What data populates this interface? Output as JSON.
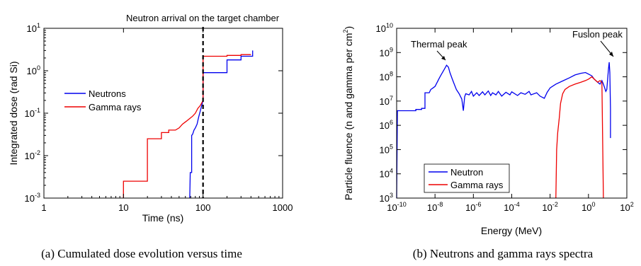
{
  "chart_data": [
    {
      "type": "line",
      "xlabel": "Time (ns)",
      "ylabel": "Integrated dose (rad Si)",
      "x_scale": "log",
      "y_scale": "log",
      "xlim": [
        1,
        1000
      ],
      "ylim": [
        0.001,
        10
      ],
      "x_ticks": [
        {
          "v": 1,
          "label": "1"
        },
        {
          "v": 10,
          "label": "10"
        },
        {
          "v": 100,
          "label": "100"
        },
        {
          "v": 1000,
          "label": "1000"
        }
      ],
      "y_ticks": [
        {
          "v": 0.001,
          "base": "10",
          "exp": "-3"
        },
        {
          "v": 0.01,
          "base": "10",
          "exp": "-2"
        },
        {
          "v": 0.1,
          "base": "10",
          "exp": "-1"
        },
        {
          "v": 1,
          "base": "10",
          "exp": "0"
        },
        {
          "v": 10,
          "base": "10",
          "exp": "1"
        }
      ],
      "legend": {
        "placement": "middle-left"
      },
      "vline": {
        "x": 100,
        "style": "dashed",
        "label": "Neutron arrival on the target chamber"
      },
      "series": [
        {
          "name": "Neutrons",
          "color": "#0000ee",
          "points": [
            [
              68,
              0.001
            ],
            [
              69,
              0.004
            ],
            [
              72,
              0.004
            ],
            [
              72,
              0.03
            ],
            [
              74,
              0.032
            ],
            [
              77,
              0.04
            ],
            [
              80,
              0.045
            ],
            [
              84,
              0.055
            ],
            [
              88,
              0.08
            ],
            [
              92,
              0.11
            ],
            [
              96,
              0.15
            ],
            [
              100,
              0.2
            ],
            [
              100,
              0.5
            ],
            [
              100,
              0.9
            ],
            [
              200,
              0.9
            ],
            [
              200,
              1.8
            ],
            [
              300,
              1.8
            ],
            [
              300,
              2.2
            ],
            [
              420,
              2.2
            ],
            [
              420,
              3.0
            ]
          ]
        },
        {
          "name": "Gamma rays",
          "color": "#ee0000",
          "points": [
            [
              10,
              0.001
            ],
            [
              10,
              0.0025
            ],
            [
              20,
              0.0025
            ],
            [
              20,
              0.025
            ],
            [
              30,
              0.025
            ],
            [
              30,
              0.035
            ],
            [
              37,
              0.035
            ],
            [
              37,
              0.04
            ],
            [
              45,
              0.04
            ],
            [
              50,
              0.045
            ],
            [
              55,
              0.055
            ],
            [
              62,
              0.065
            ],
            [
              68,
              0.075
            ],
            [
              74,
              0.085
            ],
            [
              80,
              0.1
            ],
            [
              86,
              0.13
            ],
            [
              92,
              0.15
            ],
            [
              97,
              0.18
            ],
            [
              100,
              0.2
            ],
            [
              100,
              2.2
            ],
            [
              200,
              2.2
            ],
            [
              200,
              2.3
            ],
            [
              300,
              2.3
            ],
            [
              300,
              2.4
            ],
            [
              400,
              2.4
            ]
          ]
        }
      ],
      "caption": "(a) Cumulated dose evolution versus time"
    },
    {
      "type": "line",
      "xlabel": "Energy (MeV)",
      "ylabel": "Particle fluence (n and gamma per cm²)",
      "ylabel_parts": {
        "main": "Particle fluence (n and gamma per cm",
        "sup": "2",
        "end": ")"
      },
      "x_scale": "log",
      "y_scale": "log",
      "xlim": [
        1e-10,
        100
      ],
      "ylim": [
        1000,
        10000000000.0
      ],
      "x_ticks": [
        {
          "v": 1e-10,
          "base": "10",
          "exp": "-10"
        },
        {
          "v": 1e-08,
          "base": "10",
          "exp": "-8"
        },
        {
          "v": 1e-06,
          "base": "10",
          "exp": "-6"
        },
        {
          "v": 0.0001,
          "base": "10",
          "exp": "-4"
        },
        {
          "v": 0.01,
          "base": "10",
          "exp": "-2"
        },
        {
          "v": 1,
          "base": "10",
          "exp": "0"
        },
        {
          "v": 100,
          "base": "10",
          "exp": "2"
        }
      ],
      "y_ticks": [
        {
          "v": 1000.0,
          "base": "10",
          "exp": "3"
        },
        {
          "v": 10000.0,
          "base": "10",
          "exp": "4"
        },
        {
          "v": 100000.0,
          "base": "10",
          "exp": "5"
        },
        {
          "v": 1000000.0,
          "base": "10",
          "exp": "6"
        },
        {
          "v": 10000000.0,
          "base": "10",
          "exp": "7"
        },
        {
          "v": 100000000.0,
          "base": "10",
          "exp": "8"
        },
        {
          "v": 1000000000.0,
          "base": "10",
          "exp": "9"
        },
        {
          "v": 10000000000.0,
          "base": "10",
          "exp": "10"
        }
      ],
      "legend": {
        "placement": "bottom-left"
      },
      "annotations": [
        {
          "text": "Thermal peak",
          "x": 3e-08,
          "y": 300000000.0
        },
        {
          "text": "Fusion peak",
          "x": 14,
          "y": 400000000.0
        }
      ],
      "series": [
        {
          "name": "Neutron",
          "color": "#0000ee",
          "points": [
            [
              1e-10,
              1000
            ],
            [
              1.1e-10,
              4000000.0
            ],
            [
              1e-09,
              4000000.0
            ],
            [
              1e-09,
              4500000.0
            ],
            [
              2e-09,
              4500000.0
            ],
            [
              2e-09,
              5000000.0
            ],
            [
              3e-09,
              5000000.0
            ],
            [
              3e-09,
              22000000.0
            ],
            [
              5e-09,
              22000000.0
            ],
            [
              6e-09,
              30000000.0
            ],
            [
              8e-09,
              35000000.0
            ],
            [
              1e-08,
              40000000.0
            ],
            [
              1.3e-08,
              60000000.0
            ],
            [
              1.7e-08,
              90000000.0
            ],
            [
              2.2e-08,
              130000000.0
            ],
            [
              3e-08,
              200000000.0
            ],
            [
              4e-08,
              300000000.0
            ],
            [
              5e-08,
              250000000.0
            ],
            [
              6e-08,
              150000000.0
            ],
            [
              8e-08,
              80000000.0
            ],
            [
              1e-07,
              50000000.0
            ],
            [
              1.3e-07,
              30000000.0
            ],
            [
              1.8e-07,
              20000000.0
            ],
            [
              2.5e-07,
              12000000.0
            ],
            [
              3e-07,
              4000000.0
            ],
            [
              3.5e-07,
              15000000.0
            ],
            [
              4e-07,
              20000000.0
            ],
            [
              6e-07,
              18000000.0
            ],
            [
              8e-07,
              25000000.0
            ],
            [
              1e-06,
              16000000.0
            ],
            [
              1.5e-06,
              22000000.0
            ],
            [
              2e-06,
              17000000.0
            ],
            [
              3e-06,
              24000000.0
            ],
            [
              4e-06,
              18000000.0
            ],
            [
              6e-06,
              26000000.0
            ],
            [
              8e-06,
              17000000.0
            ],
            [
              1e-05,
              22000000.0
            ],
            [
              1.5e-05,
              18000000.0
            ],
            [
              2e-05,
              25000000.0
            ],
            [
              3e-05,
              16000000.0
            ],
            [
              5e-05,
              23000000.0
            ],
            [
              8e-05,
              18000000.0
            ],
            [
              0.0001,
              24000000.0
            ],
            [
              0.0002,
              17000000.0
            ],
            [
              0.0003,
              22000000.0
            ],
            [
              0.0005,
              19000000.0
            ],
            [
              0.0008,
              25000000.0
            ],
            [
              0.001,
              18000000.0
            ],
            [
              0.002,
              22000000.0
            ],
            [
              0.003,
              16000000.0
            ],
            [
              0.005,
              13000000.0
            ],
            [
              0.007,
              23000000.0
            ],
            [
              0.01,
              35000000.0
            ],
            [
              0.02,
              50000000.0
            ],
            [
              0.05,
              70000000.0
            ],
            [
              0.1,
              90000000.0
            ],
            [
              0.2,
              120000000.0
            ],
            [
              0.4,
              140000000.0
            ],
            [
              0.7,
              150000000.0
            ],
            [
              1,
              130000000.0
            ],
            [
              1.5,
              110000000.0
            ],
            [
              2,
              80000000.0
            ],
            [
              3,
              60000000.0
            ],
            [
              4,
              50000000.0
            ],
            [
              5,
              70000000.0
            ],
            [
              6,
              50000000.0
            ],
            [
              7,
              35000000.0
            ],
            [
              8,
              25000000.0
            ],
            [
              9,
              30000000.0
            ],
            [
              10,
              80000000.0
            ],
            [
              11,
              200000000.0
            ],
            [
              12,
              400000000.0
            ],
            [
              13,
              150000000.0
            ],
            [
              14,
              5000000.0
            ],
            [
              14,
              300000.0
            ]
          ]
        },
        {
          "name": "Gamma rays",
          "color": "#ee0000",
          "points": [
            [
              0.02,
              1000
            ],
            [
              0.022,
              100000.0
            ],
            [
              0.025,
              500000.0
            ],
            [
              0.03,
              2000000.0
            ],
            [
              0.035,
              8000000.0
            ],
            [
              0.045,
              20000000.0
            ],
            [
              0.06,
              30000000.0
            ],
            [
              0.1,
              40000000.0
            ],
            [
              0.2,
              50000000.0
            ],
            [
              0.4,
              60000000.0
            ],
            [
              0.7,
              70000000.0
            ],
            [
              1,
              80000000.0
            ],
            [
              1.5,
              100000000.0
            ],
            [
              2,
              80000000.0
            ],
            [
              3,
              60000000.0
            ],
            [
              4,
              70000000.0
            ],
            [
              5,
              60000000.0
            ],
            [
              6,
              1000
            ]
          ]
        }
      ],
      "caption": "(b) Neutrons and gamma rays spectra"
    }
  ]
}
